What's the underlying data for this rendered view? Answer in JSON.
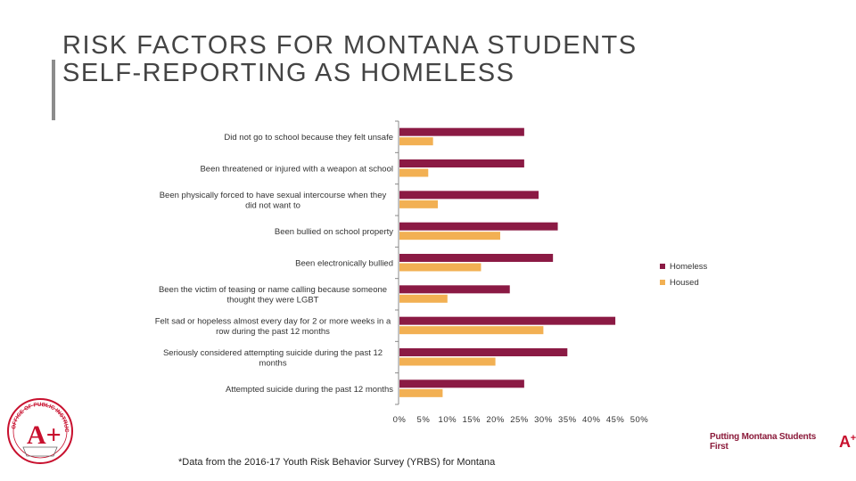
{
  "title": {
    "line1": "RISK FACTORS FOR MONTANA STUDENTS",
    "line2": "SELF-REPORTING AS HOMELESS"
  },
  "colors": {
    "homeless": "#8b1a44",
    "housed": "#f2b053",
    "axis": "#888888",
    "accent_bar": "#8c8c8c"
  },
  "chart_data": {
    "type": "bar",
    "orientation": "horizontal",
    "categories": [
      "Did not go to school because they felt unsafe",
      "Been threatened or injured with a weapon at school",
      "Been physically forced to have sexual intercourse when they did not want to",
      "Been bullied on school property",
      "Been electronically bullied",
      "Been the victim of teasing or name calling because someone thought they were LGBT",
      "Felt sad or hopeless almost every day for 2 or more weeks in a row during the past 12 months",
      "Seriously considered attempting suicide during the past 12 months",
      "Attempted suicide during the past 12 months"
    ],
    "category_label_lines": [
      [
        "Did not go to school because they felt unsafe"
      ],
      [
        "Been threatened or injured with a weapon at school"
      ],
      [
        "Been physically forced to have sexual intercourse when they",
        "did not want to"
      ],
      [
        "Been bullied on school property"
      ],
      [
        "Been electronically bullied"
      ],
      [
        "Been the victim of teasing or name calling because someone",
        "thought they were LGBT"
      ],
      [
        "Felt sad or hopeless almost every day for 2 or more weeks in a",
        "row during the past 12 months"
      ],
      [
        "Seriously considered attempting suicide during the past 12",
        "months"
      ],
      [
        "Attempted suicide during the past 12 months"
      ]
    ],
    "series": [
      {
        "name": "Homeless",
        "values": [
          26,
          26,
          29,
          33,
          32,
          23,
          45,
          35,
          26
        ]
      },
      {
        "name": "Housed",
        "values": [
          7,
          6,
          8,
          21,
          17,
          10,
          30,
          20,
          9
        ]
      }
    ],
    "x_ticks": [
      "0%",
      "5%",
      "10%",
      "15%",
      "20%",
      "25%",
      "30%",
      "35%",
      "40%",
      "45%",
      "50%"
    ],
    "xlim": [
      0,
      50
    ],
    "xlabel": "",
    "ylabel": "",
    "legend_position": "right",
    "grid": false
  },
  "footnote": "*Data from the 2016-17 Youth Risk Behavior Survey (YRBS) for Montana",
  "branding": {
    "left_logo_text": "OFFICE OF PUBLIC INSTRUCTION",
    "right_logo_text": "Putting Montana Students First",
    "right_logo_mark": "A+"
  }
}
